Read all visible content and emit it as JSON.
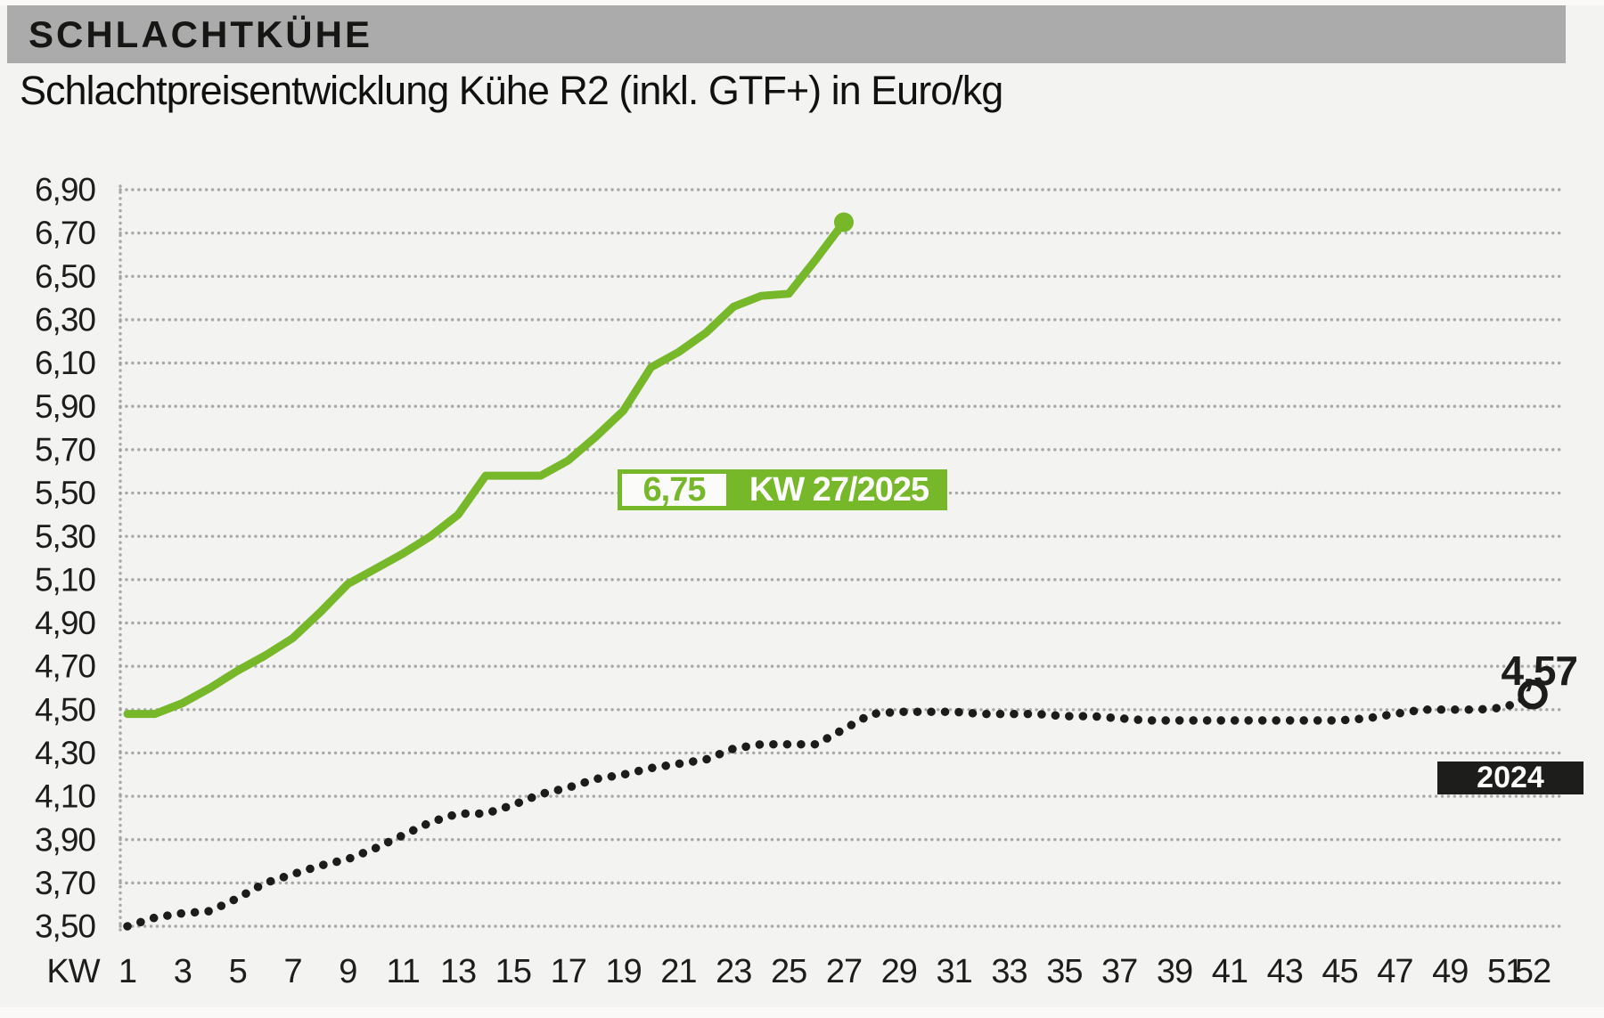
{
  "header": {
    "kicker": "SCHLACHTKÜHE",
    "title": "Schlachtpreisentwicklung Kühe R2 (inkl. GTF+) in Euro/kg"
  },
  "annotations": {
    "current_value": "6,75",
    "current_week": "KW 27/2025",
    "end_value_2024": "4,57",
    "year_badge": "2024"
  },
  "colors": {
    "accent_green": "#76b82a",
    "line_black": "#1c1c1c",
    "grid_gray": "#9b9b9b",
    "header_bar_gray": "#ababab",
    "background": "#f3f3f1"
  },
  "chart_data": {
    "type": "line",
    "title": "Schlachtpreisentwicklung Kühe R2 (inkl. GTF+) in Euro/kg",
    "ylabel": "Euro/kg",
    "xlabel_prefix": "KW",
    "ylim": [
      3.5,
      6.9
    ],
    "grid": true,
    "y_ticks": [
      {
        "value": 6.9,
        "label": "6,90"
      },
      {
        "value": 6.7,
        "label": "6,70"
      },
      {
        "value": 6.5,
        "label": "6,50"
      },
      {
        "value": 6.3,
        "label": "6,30"
      },
      {
        "value": 6.1,
        "label": "6,10"
      },
      {
        "value": 5.9,
        "label": "5,90"
      },
      {
        "value": 5.7,
        "label": "5,70"
      },
      {
        "value": 5.5,
        "label": "5,50"
      },
      {
        "value": 5.3,
        "label": "5,30"
      },
      {
        "value": 5.1,
        "label": "5,10"
      },
      {
        "value": 4.9,
        "label": "4,90"
      },
      {
        "value": 4.7,
        "label": "4,70"
      },
      {
        "value": 4.5,
        "label": "4,50"
      },
      {
        "value": 4.3,
        "label": "4,30"
      },
      {
        "value": 4.1,
        "label": "4,10"
      },
      {
        "value": 3.9,
        "label": "3,90"
      },
      {
        "value": 3.7,
        "label": "3,70"
      },
      {
        "value": 3.5,
        "label": "3,50"
      }
    ],
    "x_ticks": [
      {
        "week": 1,
        "label": "1"
      },
      {
        "week": 3,
        "label": "3"
      },
      {
        "week": 5,
        "label": "5"
      },
      {
        "week": 7,
        "label": "7"
      },
      {
        "week": 9,
        "label": "9"
      },
      {
        "week": 11,
        "label": "11"
      },
      {
        "week": 13,
        "label": "13"
      },
      {
        "week": 15,
        "label": "15"
      },
      {
        "week": 17,
        "label": "17"
      },
      {
        "week": 19,
        "label": "19"
      },
      {
        "week": 21,
        "label": "21"
      },
      {
        "week": 23,
        "label": "23"
      },
      {
        "week": 25,
        "label": "25"
      },
      {
        "week": 27,
        "label": "27"
      },
      {
        "week": 29,
        "label": "29"
      },
      {
        "week": 31,
        "label": "31"
      },
      {
        "week": 33,
        "label": "33"
      },
      {
        "week": 35,
        "label": "35"
      },
      {
        "week": 37,
        "label": "37"
      },
      {
        "week": 39,
        "label": "39"
      },
      {
        "week": 41,
        "label": "41"
      },
      {
        "week": 43,
        "label": "43"
      },
      {
        "week": 45,
        "label": "45"
      },
      {
        "week": 47,
        "label": "47"
      },
      {
        "week": 49,
        "label": "49"
      },
      {
        "week": 51,
        "label": "51"
      },
      {
        "week": 52,
        "label": "52"
      }
    ],
    "series": [
      {
        "name": "2025",
        "style": "solid",
        "color": "#76b82a",
        "weeks": [
          1,
          2,
          3,
          4,
          5,
          6,
          7,
          8,
          9,
          10,
          11,
          12,
          13,
          14,
          15,
          16,
          17,
          18,
          19,
          20,
          21,
          22,
          23,
          24,
          25,
          26,
          27
        ],
        "values": [
          4.48,
          4.48,
          4.53,
          4.6,
          4.68,
          4.75,
          4.83,
          4.95,
          5.08,
          5.15,
          5.22,
          5.3,
          5.4,
          5.58,
          5.58,
          5.58,
          5.65,
          5.76,
          5.88,
          6.08,
          6.15,
          6.24,
          6.36,
          6.41,
          6.42,
          6.58,
          6.75
        ],
        "last_value_label": "6,75",
        "last_week_label": "KW 27/2025"
      },
      {
        "name": "2024",
        "style": "dotted",
        "color": "#1c1c1c",
        "weeks": [
          1,
          2,
          3,
          4,
          5,
          6,
          7,
          8,
          9,
          10,
          11,
          12,
          13,
          14,
          15,
          16,
          17,
          18,
          19,
          20,
          21,
          22,
          23,
          24,
          25,
          26,
          27,
          28,
          29,
          30,
          31,
          32,
          33,
          34,
          35,
          36,
          37,
          38,
          39,
          40,
          41,
          42,
          43,
          44,
          45,
          46,
          47,
          48,
          49,
          50,
          51,
          52
        ],
        "values": [
          3.5,
          3.54,
          3.56,
          3.57,
          3.63,
          3.7,
          3.74,
          3.78,
          3.81,
          3.86,
          3.92,
          3.98,
          4.02,
          4.02,
          4.06,
          4.11,
          4.14,
          4.18,
          4.2,
          4.23,
          4.25,
          4.27,
          4.32,
          4.34,
          4.34,
          4.34,
          4.41,
          4.48,
          4.49,
          4.49,
          4.49,
          4.48,
          4.48,
          4.48,
          4.47,
          4.47,
          4.46,
          4.45,
          4.45,
          4.45,
          4.45,
          4.45,
          4.45,
          4.45,
          4.45,
          4.46,
          4.48,
          4.5,
          4.5,
          4.5,
          4.51,
          4.57
        ],
        "last_value_label": "4,57"
      }
    ]
  }
}
